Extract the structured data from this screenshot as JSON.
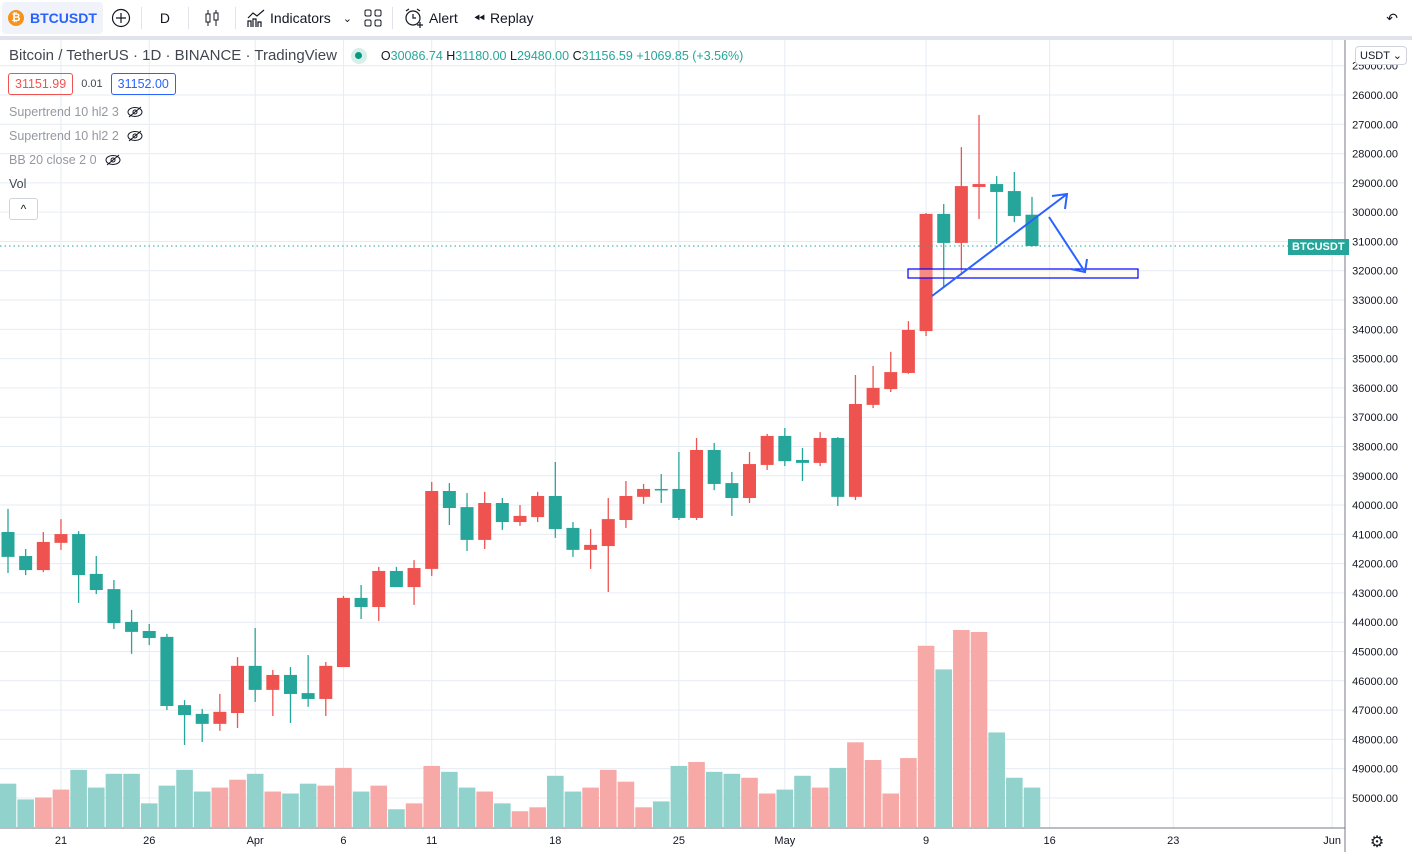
{
  "toolbar": {
    "symbol": "BTCUSDT",
    "symbol_icon": "bitcoin-icon",
    "interval": "D",
    "indicators_label": "Indicators",
    "alert_label": "Alert",
    "replay_label": "Replay"
  },
  "legend": {
    "title": "Bitcoin / TetherUS · 1D · BINANCE · TradingView",
    "o_label": "O",
    "o": "30086.74",
    "h_label": "H",
    "h": "31180.00",
    "l_label": "L",
    "l": "29480.00",
    "c_label": "C",
    "c": "31156.59",
    "change": "+1069.85 (+3.56%)",
    "bid": "31151.99",
    "spread": "0.01",
    "ask": "31152.00"
  },
  "indicators": [
    {
      "label": "Supertrend 10 hl2 3",
      "icon": "eye-hidden-icon"
    },
    {
      "label": "Supertrend 10 hl2 2",
      "icon": "eye-hidden-icon"
    },
    {
      "label": "BB 20 close 2 0",
      "icon": "eye-hidden-icon"
    },
    {
      "label": "Vol"
    }
  ],
  "collapse_label": "^",
  "price_axis": {
    "currency": "USDT ⌄",
    "last_price_label": "BTCUSDT",
    "inverted": true
  },
  "colors": {
    "up": "#26a69a",
    "down": "#ef5350",
    "up_volume": "#92d2cc",
    "down_volume": "#f7a9a7",
    "drawing": "#2962ff"
  },
  "chart_data": {
    "type": "candlestick",
    "inverted_scale": true,
    "ylim": [
      25000,
      50000
    ],
    "y_ticks": [
      "25000.00",
      "26000.00",
      "27000.00",
      "28000.00",
      "29000.00",
      "30000.00",
      "31000.00",
      "32000.00",
      "33000.00",
      "34000.00",
      "35000.00",
      "36000.00",
      "37000.00",
      "38000.00",
      "39000.00",
      "40000.00",
      "41000.00",
      "42000.00",
      "43000.00",
      "44000.00",
      "45000.00",
      "46000.00",
      "47000.00",
      "48000.00",
      "49000.00",
      "50000.00"
    ],
    "x_ticks": [
      {
        "label": "21",
        "index": 3
      },
      {
        "label": "26",
        "index": 8
      },
      {
        "label": "Apr",
        "index": 14
      },
      {
        "label": "6",
        "index": 19
      },
      {
        "label": "11",
        "index": 24
      },
      {
        "label": "18",
        "index": 31
      },
      {
        "label": "25",
        "index": 38
      },
      {
        "label": "May",
        "index": 44
      },
      {
        "label": "9",
        "index": 52
      },
      {
        "label": "16",
        "index": 59
      },
      {
        "label": "23",
        "index": 66
      },
      {
        "label": "Jun",
        "index": 75
      }
    ],
    "ohlc": [
      [
        40920,
        42320,
        40130,
        41770
      ],
      [
        41740,
        42390,
        41500,
        42220
      ],
      [
        42220,
        42290,
        40920,
        41260
      ],
      [
        41290,
        41530,
        40480,
        40990
      ],
      [
        40990,
        43340,
        40890,
        42390
      ],
      [
        42350,
        43040,
        41740,
        42900
      ],
      [
        42870,
        44230,
        42560,
        44030
      ],
      [
        43990,
        45080,
        43580,
        44330
      ],
      [
        44300,
        44780,
        44060,
        44540
      ],
      [
        44500,
        47000,
        44400,
        46860
      ],
      [
        46830,
        48190,
        46660,
        47170
      ],
      [
        47130,
        48090,
        46960,
        47470
      ],
      [
        47470,
        47710,
        46450,
        47060
      ],
      [
        47100,
        47610,
        45190,
        45490
      ],
      [
        45490,
        46720,
        44200,
        46310
      ],
      [
        46310,
        47200,
        45630,
        45800
      ],
      [
        45800,
        47440,
        45530,
        46450
      ],
      [
        46420,
        46890,
        45120,
        46620
      ],
      [
        46620,
        47200,
        45360,
        45490
      ],
      [
        45530,
        45530,
        43100,
        43170
      ],
      [
        43170,
        43890,
        42730,
        43480
      ],
      [
        43480,
        43960,
        42110,
        42250
      ],
      [
        42250,
        42800,
        42110,
        42800
      ],
      [
        42800,
        43410,
        41880,
        42150
      ],
      [
        42180,
        42420,
        39210,
        39520
      ],
      [
        39520,
        40680,
        39250,
        40100
      ],
      [
        40070,
        41570,
        39590,
        41190
      ],
      [
        41190,
        41500,
        39550,
        39930
      ],
      [
        39930,
        40850,
        39760,
        40580
      ],
      [
        40580,
        40710,
        40000,
        40370
      ],
      [
        40410,
        40580,
        39550,
        39690
      ],
      [
        39690,
        41120,
        38530,
        40820
      ],
      [
        40780,
        41770,
        40580,
        41530
      ],
      [
        41530,
        42180,
        40820,
        41360
      ],
      [
        41400,
        42970,
        39760,
        40480
      ],
      [
        40510,
        40780,
        39180,
        39690
      ],
      [
        39720,
        39960,
        39280,
        39450
      ],
      [
        39450,
        39930,
        38940,
        39490
      ],
      [
        39450,
        40510,
        38190,
        40440
      ],
      [
        40440,
        40510,
        37710,
        38120
      ],
      [
        38120,
        39490,
        37880,
        39280
      ],
      [
        39250,
        40370,
        38870,
        39760
      ],
      [
        39760,
        39930,
        38190,
        38600
      ],
      [
        38630,
        38800,
        37570,
        37640
      ],
      [
        37640,
        38670,
        37370,
        38500
      ],
      [
        38460,
        39180,
        38050,
        38560
      ],
      [
        38560,
        38670,
        37510,
        37710
      ],
      [
        37710,
        40030,
        37680,
        39720
      ],
      [
        39720,
        39830,
        35560,
        36550
      ],
      [
        36580,
        36690,
        35250,
        36000
      ],
      [
        36040,
        36140,
        34770,
        35460
      ],
      [
        35490,
        35520,
        33720,
        34020
      ],
      [
        34060,
        34230,
        30030,
        30060
      ],
      [
        30060,
        32590,
        29720,
        31050
      ],
      [
        31050,
        32150,
        27780,
        29110
      ],
      [
        29140,
        30230,
        26680,
        29040
      ],
      [
        29040,
        31090,
        28770,
        29310
      ],
      [
        29280,
        30340,
        28630,
        30130
      ],
      [
        30086.74,
        31180,
        29480,
        31156.59
      ]
    ],
    "volume_relative": [
      22,
      14,
      15,
      19,
      29,
      20,
      27,
      27,
      12,
      21,
      29,
      18,
      20,
      24,
      27,
      18,
      17,
      22,
      21,
      30,
      18,
      21,
      9,
      12,
      31,
      28,
      20,
      18,
      12,
      8,
      10,
      26,
      18,
      20,
      29,
      23,
      10,
      13,
      31,
      33,
      28,
      27,
      25,
      17,
      19,
      26,
      20,
      30,
      43,
      34,
      17,
      35,
      92,
      80,
      100,
      99,
      48,
      25,
      20
    ],
    "last_price": 31156.59
  }
}
